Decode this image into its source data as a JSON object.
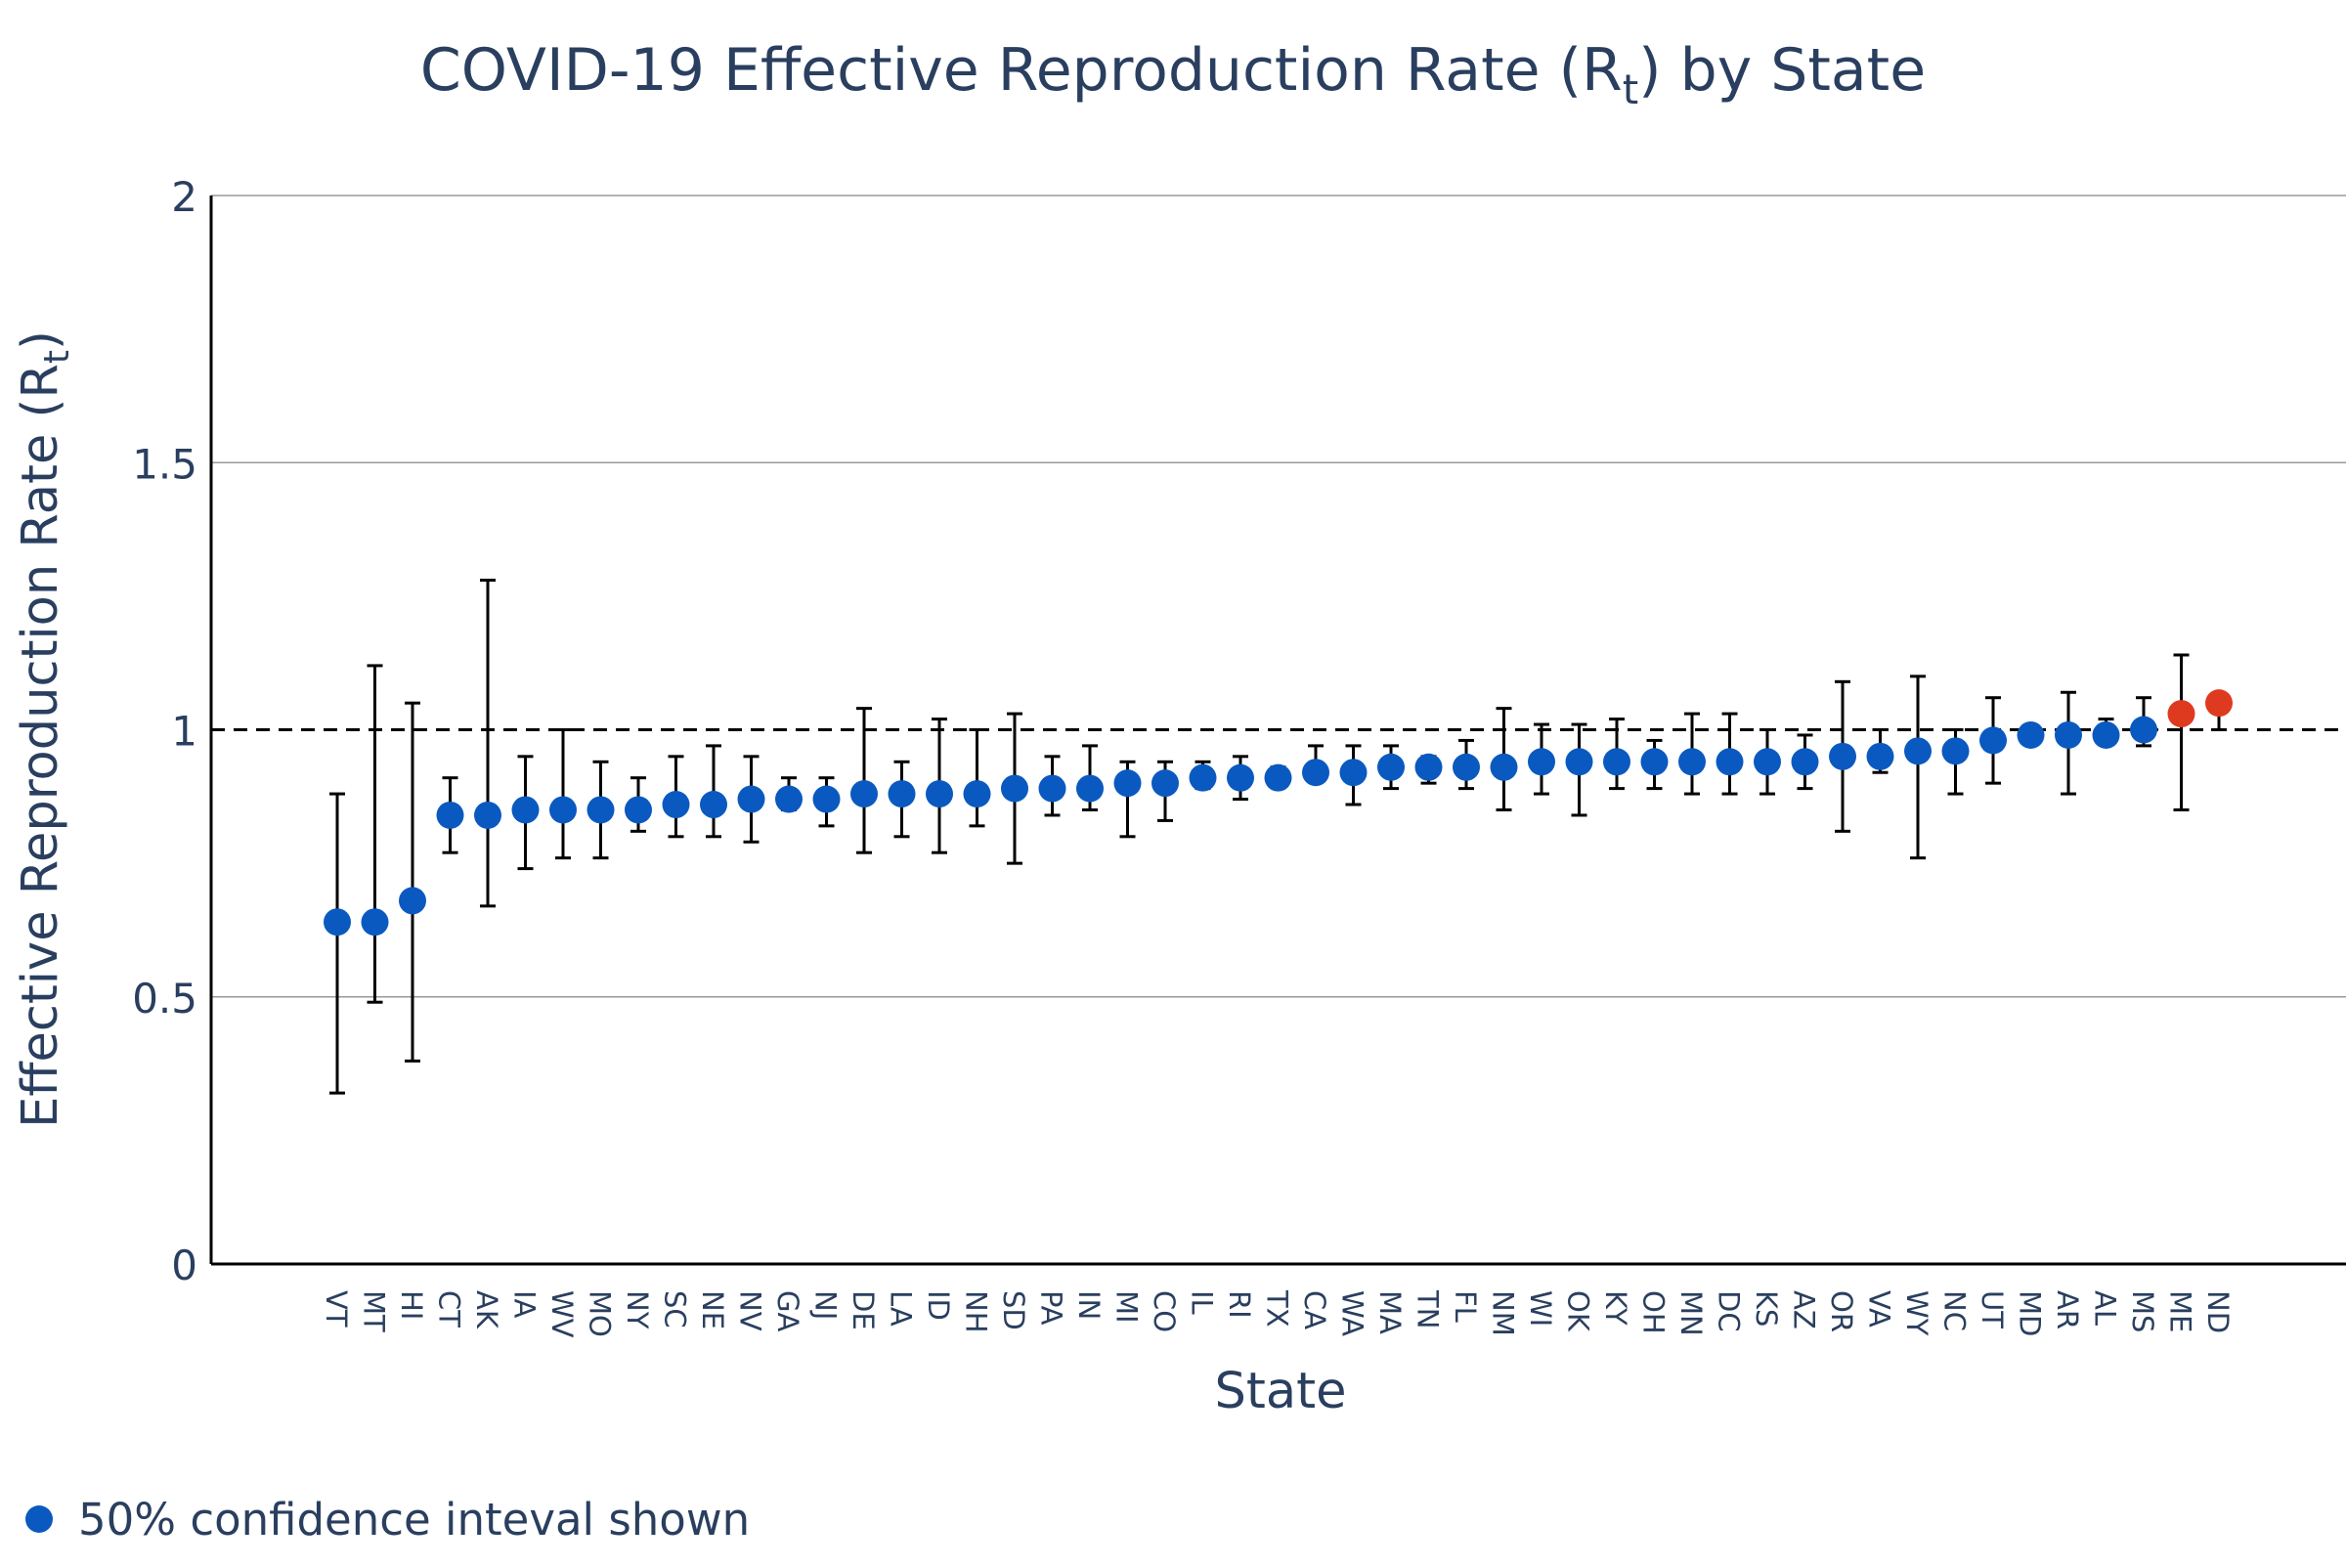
{
  "chart_data": {
    "type": "scatter",
    "title": {
      "main": "COVID-19 Effective Reproduction Rate (R",
      "sub": "t",
      "end": ") by State"
    },
    "xlabel": "State",
    "ylabel": {
      "main": "Effective Reproduction Rate (R",
      "sub": "t",
      "end": ")"
    },
    "ylim": [
      0,
      2
    ],
    "yticks": [
      0,
      0.5,
      1,
      1.5,
      2
    ],
    "ytick_labels": [
      "0",
      "0.5",
      "1",
      "1.5",
      "2"
    ],
    "gridlines": true,
    "reference_line": 1,
    "legend": {
      "label": "50% confidence inteval shown",
      "placement": "bottom-left"
    },
    "colors": {
      "below": "#0a59c0",
      "above": "#de3a20",
      "text": "#2a3f5f",
      "grid": "#9a9a9a",
      "axis": "#000000"
    },
    "categories": [
      "VT",
      "MT",
      "HI",
      "CT",
      "AK",
      "IA",
      "WV",
      "MO",
      "NY",
      "SC",
      "NE",
      "NV",
      "GA",
      "NJ",
      "DE",
      "LA",
      "ID",
      "NH",
      "SD",
      "PA",
      "IN",
      "MI",
      "CO",
      "IL",
      "RI",
      "TX",
      "CA",
      "WA",
      "MA",
      "TN",
      "FL",
      "NM",
      "WI",
      "OK",
      "KY",
      "OH",
      "MN",
      "DC",
      "KS",
      "AZ",
      "OR",
      "VA",
      "WY",
      "NC",
      "UT",
      "MD",
      "AR",
      "AL",
      "MS",
      "ME",
      "ND"
    ],
    "series": [
      {
        "values": [
          0.64,
          0.64,
          0.68,
          0.84,
          0.84,
          0.85,
          0.85,
          0.85,
          0.85,
          0.86,
          0.86,
          0.87,
          0.87,
          0.87,
          0.88,
          0.88,
          0.88,
          0.88,
          0.89,
          0.89,
          0.89,
          0.9,
          0.9,
          0.91,
          0.91,
          0.91,
          0.92,
          0.92,
          0.93,
          0.93,
          0.93,
          0.93,
          0.94,
          0.94,
          0.94,
          0.94,
          0.94,
          0.94,
          0.94,
          0.94,
          0.95,
          0.95,
          0.96,
          0.96,
          0.98,
          0.99,
          0.99,
          0.99,
          1.0,
          1.03,
          1.05
        ],
        "lower": [
          0.32,
          0.49,
          0.38,
          0.77,
          0.67,
          0.74,
          0.76,
          0.76,
          0.81,
          0.8,
          0.8,
          0.79,
          0.85,
          0.82,
          0.77,
          0.8,
          0.77,
          0.82,
          0.75,
          0.84,
          0.85,
          0.8,
          0.83,
          0.89,
          0.87,
          0.9,
          0.91,
          0.86,
          0.89,
          0.9,
          0.89,
          0.85,
          0.88,
          0.84,
          0.89,
          0.89,
          0.88,
          0.88,
          0.88,
          0.89,
          0.81,
          0.92,
          0.76,
          0.88,
          0.9,
          0.98,
          0.88,
          0.98,
          0.97,
          0.85,
          1.0
        ],
        "upper": [
          0.88,
          1.12,
          1.05,
          0.91,
          1.28,
          0.95,
          1.0,
          0.94,
          0.91,
          0.95,
          0.97,
          0.95,
          0.91,
          0.91,
          1.04,
          0.94,
          1.02,
          1.0,
          1.03,
          0.95,
          0.97,
          0.94,
          0.94,
          0.94,
          0.95,
          0.93,
          0.97,
          0.97,
          0.97,
          0.95,
          0.98,
          1.04,
          1.01,
          1.01,
          1.02,
          0.98,
          1.03,
          1.03,
          1.0,
          0.99,
          1.09,
          1.0,
          1.1,
          1.0,
          1.06,
          1.0,
          1.07,
          1.02,
          1.06,
          1.14,
          1.06
        ]
      }
    ]
  }
}
